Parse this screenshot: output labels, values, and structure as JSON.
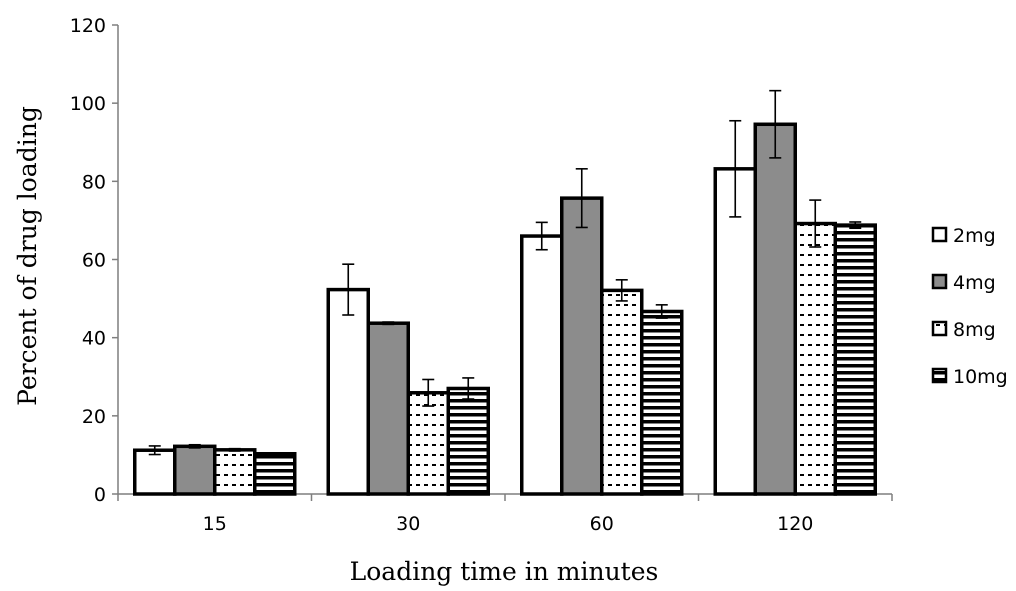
{
  "chart_data": {
    "type": "bar",
    "title": "",
    "xlabel": "Loading time in minutes",
    "ylabel": "Percent of drug loading",
    "categories": [
      "15",
      "30",
      "60",
      "120"
    ],
    "ylim": [
      0,
      120
    ],
    "yticks": [
      0,
      20,
      40,
      60,
      80,
      100,
      120
    ],
    "grid": false,
    "legend_position": "right",
    "series": [
      {
        "name": "2mg",
        "pattern": "solid-white",
        "fill": "#ffffff",
        "values": [
          11.2,
          52.3,
          66.0,
          83.2
        ],
        "errors": [
          1.1,
          6.5,
          3.5,
          12.3
        ]
      },
      {
        "name": "4mg",
        "pattern": "solid-gray",
        "fill": "#8c8c8c",
        "values": [
          12.2,
          43.7,
          75.7,
          94.6
        ],
        "errors": [
          0.4,
          0.3,
          7.5,
          8.6
        ]
      },
      {
        "name": "8mg",
        "pattern": "dotted-horizontal",
        "fill": "#ffffff",
        "values": [
          11.3,
          25.9,
          52.1,
          69.2
        ],
        "errors": [
          0.3,
          3.4,
          2.7,
          6.0
        ]
      },
      {
        "name": "10mg",
        "pattern": "horizontal-stripes",
        "fill": "#ffffff",
        "values": [
          10.3,
          27.0,
          46.7,
          68.8
        ],
        "errors": [
          0.2,
          2.7,
          1.7,
          0.8
        ]
      }
    ]
  }
}
